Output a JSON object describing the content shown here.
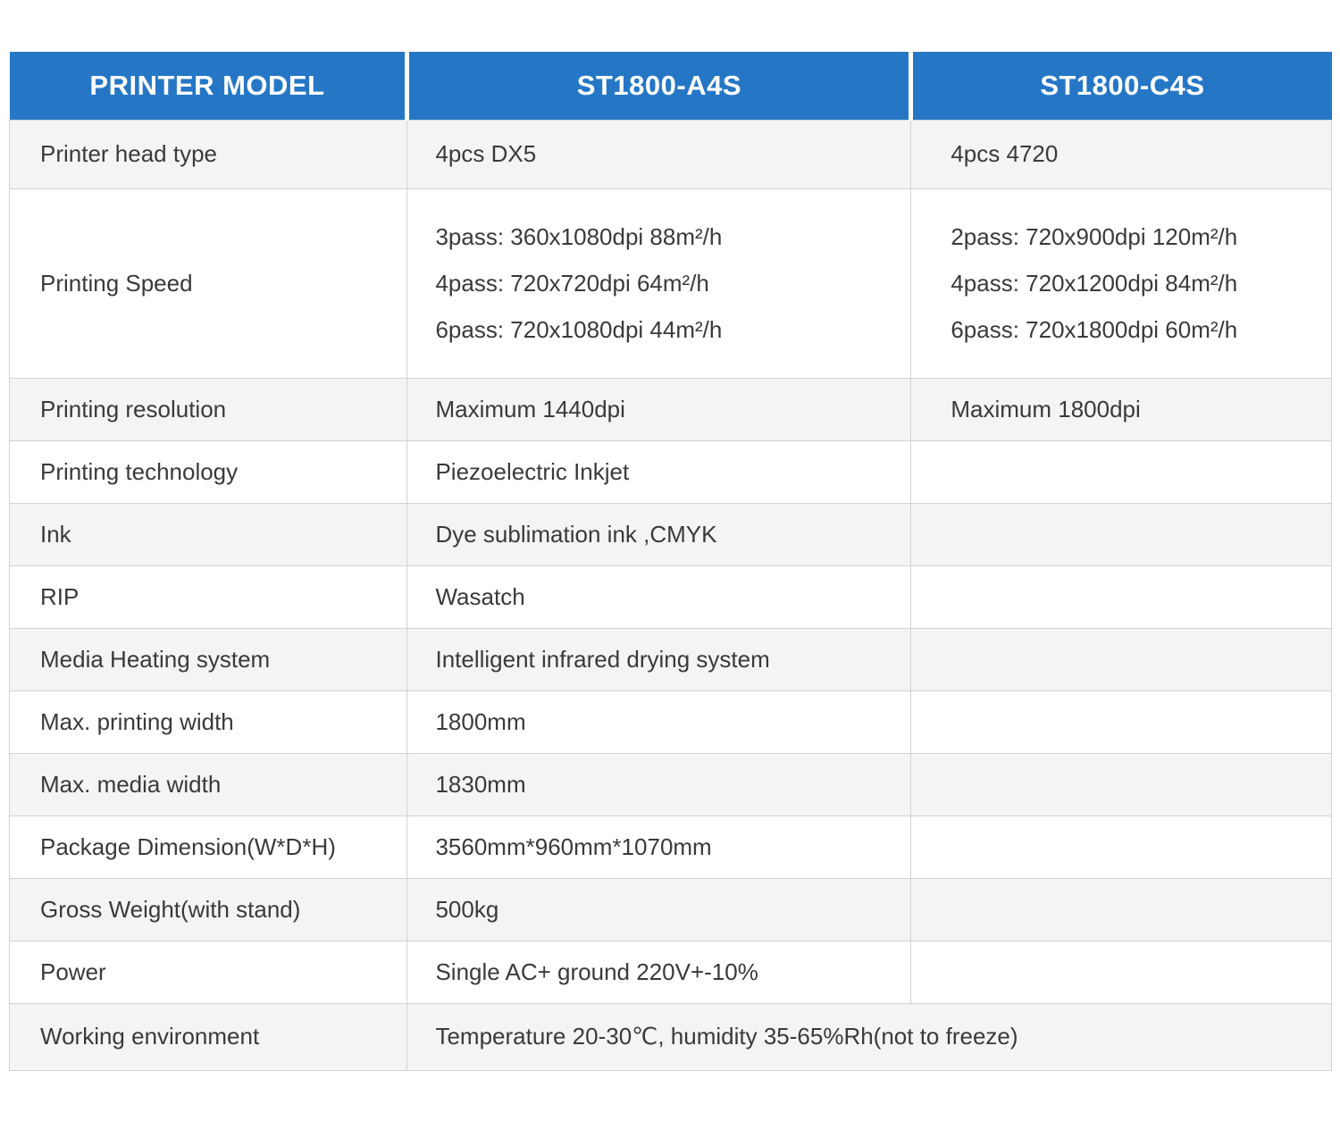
{
  "header": {
    "model_column": "PRINTER MODEL",
    "model_a": "ST1800-A4S",
    "model_b": "ST1800-C4S"
  },
  "rows": [
    {
      "label": "Printer head type",
      "a": "4pcs DX5",
      "b": "4pcs 4720"
    },
    {
      "label": "Printing Speed",
      "a": [
        "3pass: 360x1080dpi 88m²/h",
        "4pass: 720x720dpi 64m²/h",
        "6pass: 720x1080dpi 44m²/h"
      ],
      "b": [
        "2pass: 720x900dpi 120m²/h",
        "4pass: 720x1200dpi 84m²/h",
        "6pass: 720x1800dpi 60m²/h"
      ]
    },
    {
      "label": "Printing resolution",
      "a": "Maximum 1440dpi",
      "b": "Maximum 1800dpi"
    },
    {
      "label": "Printing technology",
      "a": "Piezoelectric Inkjet",
      "b": ""
    },
    {
      "label": "Ink",
      "a": "Dye sublimation ink ,CMYK",
      "b": ""
    },
    {
      "label": "RIP",
      "a": "Wasatch",
      "b": ""
    },
    {
      "label": "Media Heating system",
      "a": "Intelligent infrared drying system",
      "b": ""
    },
    {
      "label": "Max. printing width",
      "a": "1800mm",
      "b": ""
    },
    {
      "label": "Max. media width",
      "a": "1830mm",
      "b": ""
    },
    {
      "label": "Package Dimension(W*D*H)",
      "a": "3560mm*960mm*1070mm",
      "b": ""
    },
    {
      "label": "Gross Weight(with stand)",
      "a": "500kg",
      "b": ""
    },
    {
      "label": "Power",
      "a": "Single AC+ ground 220V+-10%",
      "b": ""
    },
    {
      "label": "Working environment",
      "a": "Temperature 20-30℃, humidity 35-65%Rh(not to freeze)"
    }
  ],
  "colors": {
    "header_bg": "#2577c6",
    "header_text": "#ffffff",
    "row_alt_bg": "#f4f4f4",
    "border": "#d2d2d2",
    "body_text": "#3a3a3a"
  }
}
